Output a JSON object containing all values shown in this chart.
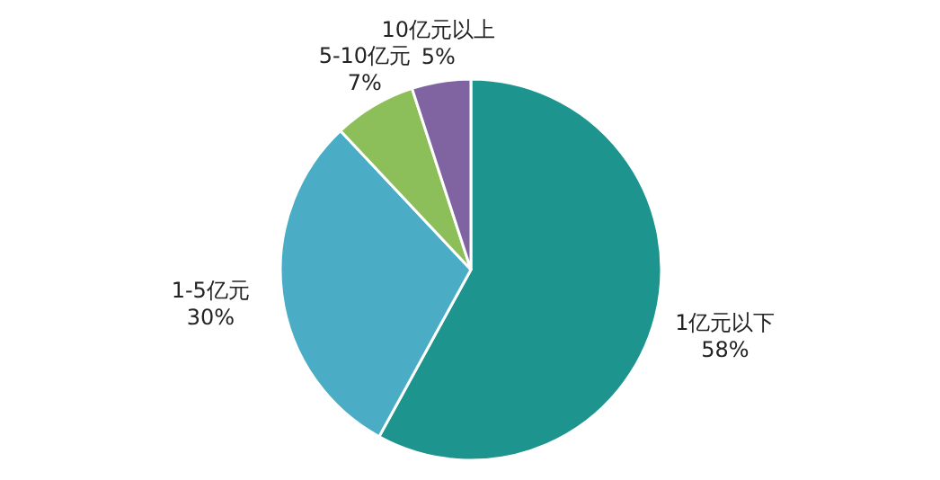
{
  "chart_data": {
    "type": "pie",
    "categories": [
      "1亿元以下",
      "1-5亿元",
      "5-10亿元",
      "10亿元以上"
    ],
    "values": [
      58,
      30,
      7,
      5
    ],
    "value_labels": [
      "58%",
      "30%",
      "7%",
      "5%"
    ],
    "colors": [
      "#1e948f",
      "#4bacc6",
      "#8cbf5a",
      "#8064a2"
    ]
  }
}
